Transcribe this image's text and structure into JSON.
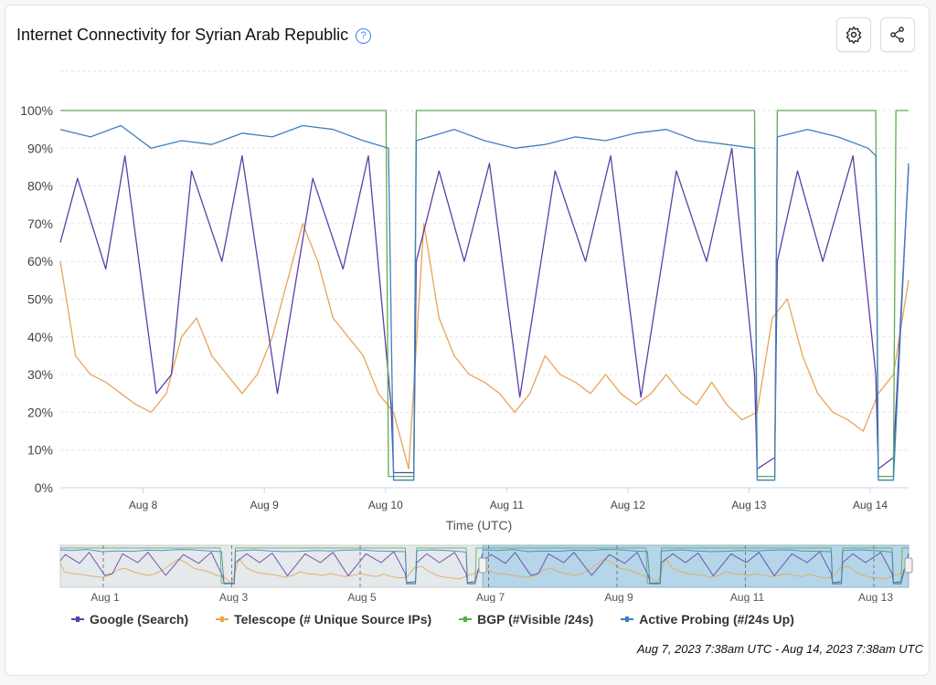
{
  "header": {
    "title": "Internet Connectivity for Syrian Arab Republic",
    "help_icon": "?",
    "settings_icon": "gear-icon",
    "share_icon": "share-icon"
  },
  "chart_data": {
    "type": "line",
    "title": "Internet Connectivity for Syrian Arab Republic",
    "xlabel": "Time (UTC)",
    "ylabel": "",
    "x_unit": "hours since Aug 7, 2023 7:38am UTC",
    "xlim": [
      0,
      168
    ],
    "ylim": [
      0,
      100
    ],
    "y_ticks": [
      "0%",
      "10%",
      "20%",
      "30%",
      "40%",
      "50%",
      "60%",
      "70%",
      "80%",
      "90%",
      "100%"
    ],
    "x_ticks": [
      {
        "label": "Aug 8",
        "h": 16.4
      },
      {
        "label": "Aug 9",
        "h": 40.4
      },
      {
        "label": "Aug 10",
        "h": 64.4
      },
      {
        "label": "Aug 11",
        "h": 88.4
      },
      {
        "label": "Aug 12",
        "h": 112.4
      },
      {
        "label": "Aug 13",
        "h": 136.4
      },
      {
        "label": "Aug 14",
        "h": 160.4
      }
    ],
    "grid": true,
    "legend": "bottom",
    "series": [
      {
        "name": "Google (Search)",
        "color": "#5b3fa6",
        "points": [
          [
            0,
            65
          ],
          [
            3.4,
            82
          ],
          [
            9,
            58
          ],
          [
            12.8,
            88
          ],
          [
            19,
            25
          ],
          [
            22,
            30
          ],
          [
            26,
            84
          ],
          [
            32,
            60
          ],
          [
            36,
            88
          ],
          [
            43,
            25
          ],
          [
            50,
            82
          ],
          [
            56,
            58
          ],
          [
            61,
            88
          ],
          [
            65.5,
            22
          ],
          [
            66,
            4
          ],
          [
            70,
            4
          ],
          [
            70.5,
            60
          ],
          [
            75,
            84
          ],
          [
            80,
            60
          ],
          [
            85,
            86
          ],
          [
            91,
            24
          ],
          [
            98,
            84
          ],
          [
            104,
            60
          ],
          [
            109,
            88
          ],
          [
            115,
            24
          ],
          [
            122,
            84
          ],
          [
            128,
            60
          ],
          [
            133,
            90
          ],
          [
            137.5,
            30
          ],
          [
            138,
            5
          ],
          [
            141.5,
            8
          ],
          [
            142,
            60
          ],
          [
            146,
            84
          ],
          [
            151,
            60
          ],
          [
            157,
            88
          ],
          [
            161.5,
            30
          ],
          [
            162,
            5
          ],
          [
            165,
            8
          ],
          [
            168,
            85
          ]
        ]
      },
      {
        "name": "Telescope (# Unique Source IPs)",
        "color": "#e8a456",
        "points": [
          [
            0,
            60
          ],
          [
            3,
            35
          ],
          [
            6,
            30
          ],
          [
            9,
            28
          ],
          [
            12,
            25
          ],
          [
            15,
            22
          ],
          [
            18,
            20
          ],
          [
            21,
            25
          ],
          [
            24,
            40
          ],
          [
            27,
            45
          ],
          [
            30,
            35
          ],
          [
            33,
            30
          ],
          [
            36,
            25
          ],
          [
            39,
            30
          ],
          [
            42,
            40
          ],
          [
            45,
            55
          ],
          [
            48,
            70
          ],
          [
            51,
            60
          ],
          [
            54,
            45
          ],
          [
            57,
            40
          ],
          [
            60,
            35
          ],
          [
            63,
            25
          ],
          [
            66,
            20
          ],
          [
            69,
            5
          ],
          [
            72,
            70
          ],
          [
            75,
            45
          ],
          [
            78,
            35
          ],
          [
            81,
            30
          ],
          [
            84,
            28
          ],
          [
            87,
            25
          ],
          [
            90,
            20
          ],
          [
            93,
            25
          ],
          [
            96,
            35
          ],
          [
            99,
            30
          ],
          [
            102,
            28
          ],
          [
            105,
            25
          ],
          [
            108,
            30
          ],
          [
            111,
            25
          ],
          [
            114,
            22
          ],
          [
            117,
            25
          ],
          [
            120,
            30
          ],
          [
            123,
            25
          ],
          [
            126,
            22
          ],
          [
            129,
            28
          ],
          [
            132,
            22
          ],
          [
            135,
            18
          ],
          [
            138,
            20
          ],
          [
            141,
            45
          ],
          [
            144,
            50
          ],
          [
            147,
            35
          ],
          [
            150,
            25
          ],
          [
            153,
            20
          ],
          [
            156,
            18
          ],
          [
            159,
            15
          ],
          [
            162,
            25
          ],
          [
            165,
            30
          ],
          [
            168,
            55
          ]
        ]
      },
      {
        "name": "BGP (#Visible /24s)",
        "color": "#5cae4f",
        "points": [
          [
            0,
            100
          ],
          [
            64.5,
            100
          ],
          [
            65,
            3
          ],
          [
            70,
            3
          ],
          [
            70.5,
            100
          ],
          [
            137.5,
            100
          ],
          [
            138,
            3
          ],
          [
            141.5,
            3
          ],
          [
            142,
            100
          ],
          [
            161.5,
            100
          ],
          [
            162,
            3
          ],
          [
            165,
            3
          ],
          [
            165.5,
            100
          ],
          [
            168,
            100
          ]
        ]
      },
      {
        "name": "Active Probing (#/24s Up)",
        "color": "#3f7fc0",
        "points": [
          [
            0,
            95
          ],
          [
            6,
            93
          ],
          [
            12,
            96
          ],
          [
            18,
            90
          ],
          [
            24,
            92
          ],
          [
            30,
            91
          ],
          [
            36,
            94
          ],
          [
            42,
            93
          ],
          [
            48,
            96
          ],
          [
            54,
            95
          ],
          [
            60,
            92
          ],
          [
            65,
            90
          ],
          [
            66,
            2
          ],
          [
            70,
            2
          ],
          [
            70.5,
            92
          ],
          [
            78,
            95
          ],
          [
            84,
            92
          ],
          [
            90,
            90
          ],
          [
            96,
            91
          ],
          [
            102,
            93
          ],
          [
            108,
            92
          ],
          [
            114,
            94
          ],
          [
            120,
            95
          ],
          [
            126,
            92
          ],
          [
            132,
            91
          ],
          [
            137.5,
            90
          ],
          [
            138,
            2
          ],
          [
            141.5,
            2
          ],
          [
            142,
            93
          ],
          [
            148,
            95
          ],
          [
            154,
            93
          ],
          [
            160,
            90
          ],
          [
            161.5,
            88
          ],
          [
            162,
            2
          ],
          [
            165,
            2
          ],
          [
            168,
            86
          ]
        ]
      }
    ],
    "navigator": {
      "x_ticks": [
        "Aug 1",
        "Aug 3",
        "Aug 5",
        "Aug 7",
        "Aug 9",
        "Aug 11",
        "Aug 13"
      ],
      "selected_range": "Aug 7 - Aug 14"
    }
  },
  "footer": {
    "range": "Aug 7, 2023 7:38am UTC - Aug 14, 2023 7:38am UTC"
  }
}
